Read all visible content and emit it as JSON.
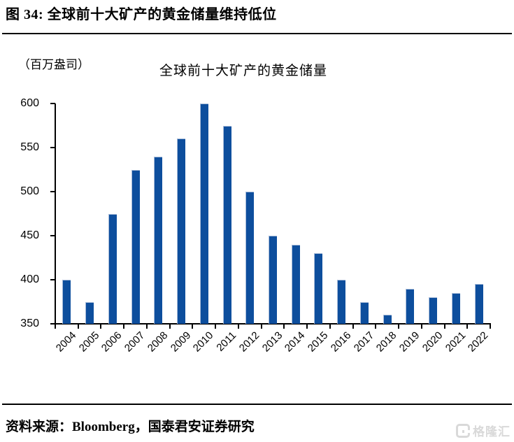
{
  "header": {
    "title": "图 34:  全球前十大矿产的黄金储量维持低位"
  },
  "chart": {
    "unit_label": "（百万盎司）",
    "title": "全球前十大矿产的黄金储量"
  },
  "chart_data": {
    "type": "bar",
    "title": "全球前十大矿产的黄金储量",
    "unit": "百万盎司",
    "categories": [
      "2004",
      "2005",
      "2006",
      "2007",
      "2008",
      "2009",
      "2010",
      "2011",
      "2012",
      "2013",
      "2014",
      "2015",
      "2016",
      "2017",
      "2018",
      "2019",
      "2020",
      "2021",
      "2022"
    ],
    "values": [
      400,
      375,
      475,
      525,
      540,
      560,
      600,
      575,
      500,
      450,
      440,
      430,
      400,
      375,
      360,
      390,
      380,
      385,
      395
    ],
    "ylim": [
      350,
      600
    ],
    "ytick_step": 50,
    "xlabel": "",
    "ylabel": "百万盎司",
    "grid": false,
    "legend_position": "none",
    "bar_color": "#0d4e9d",
    "bar_edge_color": "#a9bcd9",
    "axis_color": "#000000"
  },
  "footer": {
    "source": "资料来源：Bloomberg，国泰君安证券研究",
    "logo_text": "格隆汇",
    "logo_color": "#d9d9d9"
  }
}
